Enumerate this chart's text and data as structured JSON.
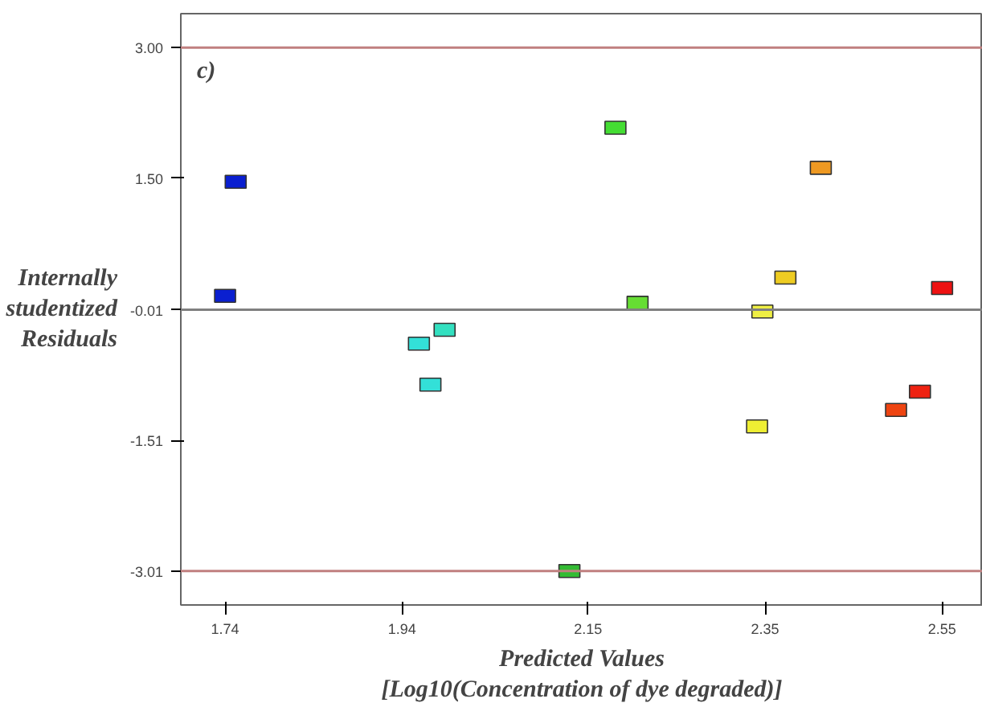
{
  "chart_data": {
    "type": "scatter",
    "title": "c)",
    "xlabel": "Predicted Values\n[Log10(Concentration of dye degraded)]",
    "ylabel": "Internally\nstudentized\nResiduals",
    "x": [
      1.752,
      1.74,
      1.959,
      1.988,
      1.972,
      2.181,
      2.206,
      2.129,
      2.347,
      2.341,
      2.373,
      2.413,
      2.55,
      2.498,
      2.525
    ],
    "values": [
      1.46,
      0.15,
      -0.4,
      -0.24,
      -0.87,
      2.08,
      0.07,
      -3.01,
      -0.03,
      -1.35,
      0.36,
      1.62,
      0.24,
      -1.16,
      -0.95
    ],
    "colors": [
      "#0a1fd0",
      "#0a1fd0",
      "#33e0d8",
      "#33e0c0",
      "#33e0d8",
      "#44dd33",
      "#66dd33",
      "#33bb33",
      "#eeee44",
      "#eeee33",
      "#eecc22",
      "#ee9922",
      "#ee1111",
      "#ee4411",
      "#ee2211"
    ],
    "marker": "square",
    "grid": false,
    "xlim": [
      1.69,
      2.596
    ],
    "ylim": [
      -3.4,
      3.39
    ],
    "xticks": [
      1.74,
      1.94,
      2.15,
      2.35,
      2.55
    ],
    "yticks": [
      {
        "value": 3.0,
        "label": "3.00"
      },
      {
        "value": 1.5,
        "label": "1.50"
      },
      {
        "value": -0.01,
        "label": "-0.01"
      },
      {
        "value": -1.51,
        "label": "-1.51"
      },
      {
        "value": -3.01,
        "label": "-3.01"
      }
    ],
    "ref_lines": [
      {
        "axis": "y",
        "value": 3.0,
        "color": "#c08080"
      },
      {
        "axis": "y",
        "value": -0.01,
        "color": "#808080"
      },
      {
        "axis": "y",
        "value": -3.01,
        "color": "#c08080"
      }
    ]
  }
}
